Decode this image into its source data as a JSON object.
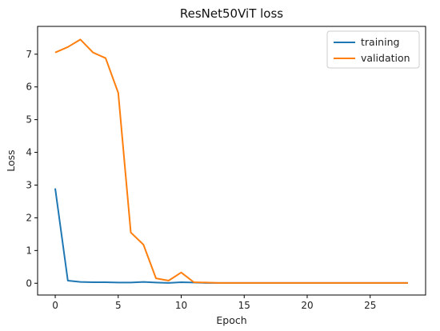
{
  "chart_data": {
    "type": "line",
    "title": "ResNet50ViT loss",
    "xlabel": "Epoch",
    "ylabel": "Loss",
    "xlim": [
      -1.4,
      29.4
    ],
    "ylim": [
      -0.36,
      7.85
    ],
    "xticks": [
      0,
      5,
      10,
      15,
      20,
      25
    ],
    "yticks": [
      0,
      1,
      2,
      3,
      4,
      5,
      6,
      7
    ],
    "grid": false,
    "legend_position": "top-right",
    "series": [
      {
        "name": "training",
        "color": "#1f77b4",
        "x": [
          0,
          1,
          2,
          3,
          4,
          5,
          6,
          7,
          8,
          9,
          10,
          11,
          12,
          13,
          14,
          15,
          16,
          17,
          18,
          19,
          20,
          21,
          22,
          23,
          24,
          25,
          26,
          27,
          28
        ],
        "y": [
          2.9,
          0.08,
          0.04,
          0.03,
          0.03,
          0.02,
          0.02,
          0.04,
          0.02,
          0.01,
          0.03,
          0.02,
          0.01,
          0.01,
          0.01,
          0.01,
          0.01,
          0.01,
          0.01,
          0.01,
          0.01,
          0.01,
          0.01,
          0.01,
          0.01,
          0.01,
          0.01,
          0.01,
          0.01
        ]
      },
      {
        "name": "validation",
        "color": "#ff7f0e",
        "x": [
          0,
          1,
          2,
          3,
          4,
          5,
          6,
          7,
          8,
          9,
          10,
          11,
          12,
          13,
          14,
          15,
          16,
          17,
          18,
          19,
          20,
          21,
          22,
          23,
          24,
          25,
          26,
          27,
          28
        ],
        "y": [
          7.05,
          7.22,
          7.45,
          7.05,
          6.88,
          5.82,
          1.55,
          1.18,
          0.15,
          0.08,
          0.33,
          0.03,
          0.02,
          0.01,
          0.01,
          0.01,
          0.01,
          0.01,
          0.01,
          0.01,
          0.01,
          0.01,
          0.01,
          0.01,
          0.01,
          0.01,
          0.01,
          0.01,
          0.01
        ]
      }
    ]
  }
}
